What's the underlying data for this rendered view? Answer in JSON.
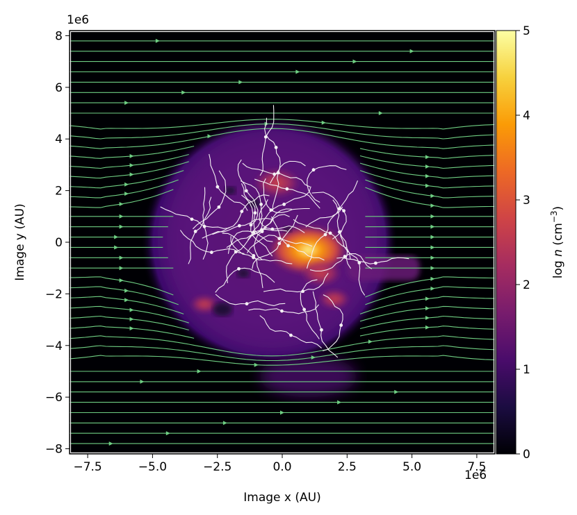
{
  "chart_data": {
    "type": "heatmap",
    "title": "",
    "xlabel": "Image x (AU)",
    "ylabel": "Image y (AU)",
    "x_offset_label": "1e6",
    "y_offset_label": "1e6",
    "xlim": [
      -8.2,
      8.2
    ],
    "ylim": [
      -8.2,
      8.2
    ],
    "x_ticks": [
      -7.5,
      -5.0,
      -2.5,
      0.0,
      2.5,
      5.0,
      7.5
    ],
    "x_tick_labels": [
      "−7.5",
      "−5.0",
      "−2.5",
      "0.0",
      "2.5",
      "5.0",
      "7.5"
    ],
    "y_ticks": [
      -8,
      -6,
      -4,
      -2,
      0,
      2,
      4,
      6,
      8
    ],
    "y_tick_labels": [
      "−8",
      "−6",
      "−4",
      "−2",
      "0",
      "2",
      "4",
      "6",
      "8"
    ],
    "colorbar": {
      "label_prefix": "log ",
      "label_var": "n",
      "label_units": " (cm",
      "label_exp": "−3",
      "label_close": ")",
      "range": [
        0,
        5
      ],
      "ticks": [
        0,
        1,
        2,
        3,
        4,
        5
      ],
      "tick_labels": [
        "0",
        "1",
        "2",
        "3",
        "4",
        "5"
      ],
      "colormap": "inferno"
    },
    "background_density": 0.0,
    "cloud": {
      "center": [
        -0.5,
        0.0
      ],
      "radius": 4.6,
      "mean_density": 1.0
    },
    "dense_regions": [
      {
        "x": 1.0,
        "y": -0.3,
        "log_n": 3.9
      },
      {
        "x": 1.5,
        "y": -1.2,
        "log_n": 2.6
      },
      {
        "x": -0.2,
        "y": 2.3,
        "log_n": 2.8
      },
      {
        "x": 2.0,
        "y": -2.2,
        "log_n": 2.3
      },
      {
        "x": -3.0,
        "y": -2.4,
        "log_n": 2.2
      }
    ],
    "tail": {
      "x_start": 2.5,
      "x_end": 5.3,
      "y": -1.0,
      "log_n": 1.5
    },
    "streamline_colors": {
      "outer": "#6fcf83",
      "inner": "#f4f0f4"
    }
  },
  "colors": {
    "inferno": [
      "#000004",
      "#1b0c41",
      "#4a0c6b",
      "#781c6d",
      "#a52c60",
      "#cf4446",
      "#ed6925",
      "#fb9b06",
      "#f7d13d",
      "#fcffa4"
    ]
  }
}
